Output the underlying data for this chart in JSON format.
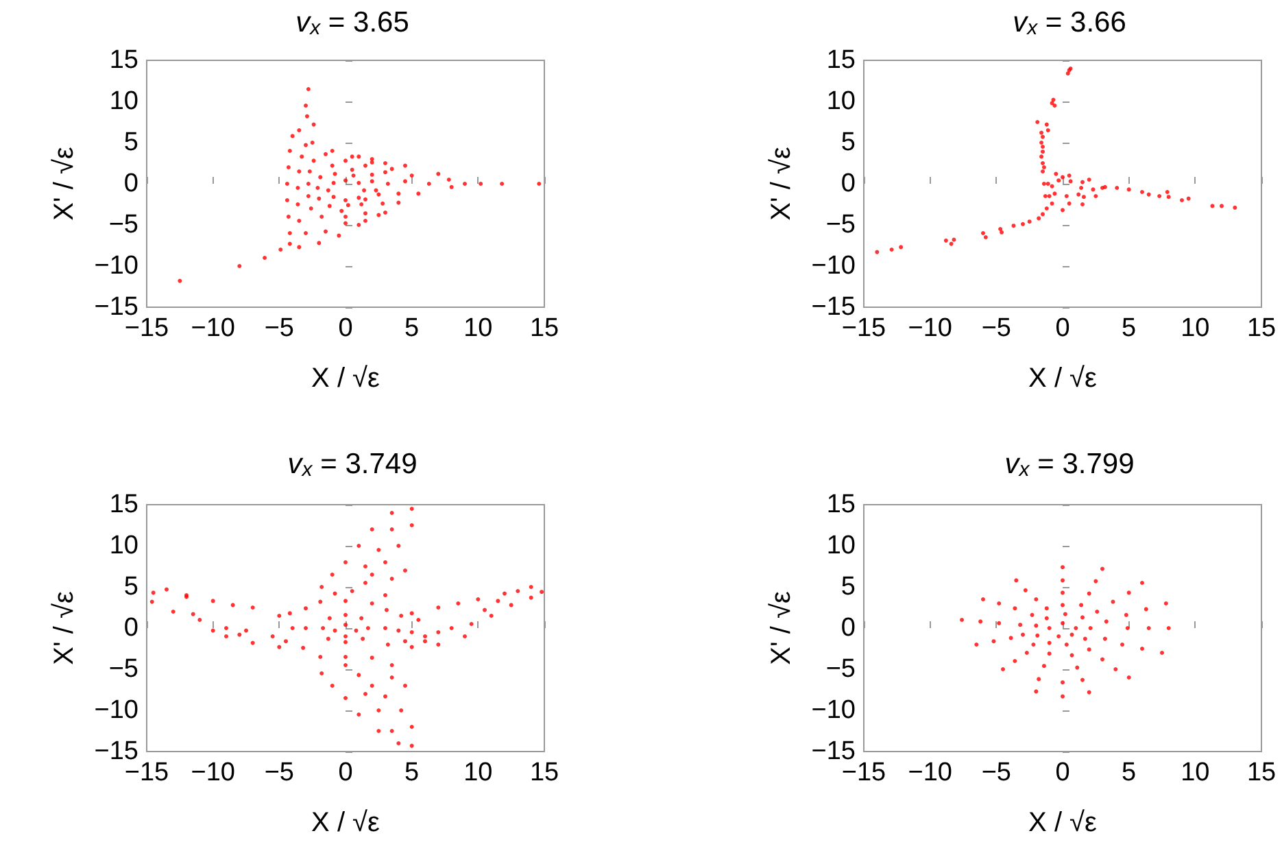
{
  "chart_data": [
    {
      "type": "scatter",
      "title": "v$_{x}$ = 3.65",
      "xlabel": "X / √ε",
      "ylabel": "X' / √ε",
      "color": "#ff0000",
      "marker": "circle",
      "xlim": [
        -15,
        15
      ],
      "ylim": [
        -15,
        15
      ],
      "xticks": [
        -15,
        -10,
        -5,
        0,
        5,
        10,
        15
      ],
      "yticks": [
        -15,
        -10,
        -5,
        0,
        5,
        10,
        15
      ],
      "x": [
        -12.5,
        -8,
        -6.1,
        -4.9,
        -4.2,
        -2.8,
        -3,
        -2.9,
        -2.4,
        7.8,
        9,
        10.2,
        11.8,
        14.6,
        7,
        8,
        -3.5,
        -2.5,
        -1,
        0.5,
        2,
        3.5,
        5,
        6.3,
        5.5,
        4,
        2.5,
        1,
        -0.5,
        -2,
        -3.5,
        -4.2,
        -4.3,
        -4.4,
        -4.4,
        -4.3,
        -4.2,
        -4,
        -3,
        -1.5,
        0,
        1.5,
        3,
        4.5,
        4,
        2.8,
        1.5,
        0,
        -1.5,
        -3,
        -3.5,
        -3.6,
        -3.6,
        -3.5,
        -3.3,
        -2.4,
        -1,
        0.5,
        2,
        3.2,
        2.5,
        1.2,
        -0.3,
        -1.8,
        -2.6,
        -2.8,
        -2.8,
        -2.7,
        -1.3,
        -0.9,
        0,
        1,
        1.4,
        1,
        0,
        -0.9,
        -1.9,
        -0.8,
        0.6,
        2,
        2.3,
        1.5,
        0.2,
        -1.2,
        -2,
        -2.1,
        1,
        2,
        3,
        4.5,
        0,
        1.5,
        3
      ],
      "values": [
        -11.8,
        -10,
        -9,
        -8,
        -7.3,
        11.5,
        9.5,
        8.2,
        7.2,
        0.5,
        0,
        0,
        0,
        0,
        1.2,
        -0.4,
        6.5,
        5,
        4,
        3.3,
        2.6,
        1.8,
        1,
        0,
        -1.2,
        -2.3,
        -3.8,
        -5,
        -6.3,
        -7.2,
        -7.7,
        -6,
        -4,
        -2,
        0,
        2,
        4,
        5.8,
        4.7,
        3.6,
        2.8,
        2.2,
        1.4,
        0.3,
        -1.2,
        -2.4,
        -3.6,
        -4.8,
        -5.8,
        -6,
        -4.5,
        -2.5,
        -0.5,
        1.5,
        3.3,
        2.8,
        2.2,
        1.7,
        1.1,
        0,
        -1.3,
        -2.5,
        -3.3,
        -4,
        -3,
        -1.5,
        0,
        1.5,
        -0.8,
        0.1,
        0.4,
        0.1,
        -0.8,
        -1.7,
        -2,
        -1.6,
        0.8,
        1.2,
        1,
        0.3,
        -0.8,
        -1.9,
        -2.6,
        -2.7,
        -1.8,
        -0.5,
        3.3,
        3,
        2.5,
        2.2,
        -4,
        -4.5,
        -3.5
      ]
    },
    {
      "type": "scatter",
      "title": "v$_{x}$ = 3.66",
      "xlabel": "X / √ε",
      "ylabel": "X' / √ε",
      "color": "#ff0000",
      "marker": "circle",
      "xlim": [
        -15,
        15
      ],
      "ylim": [
        -15,
        15
      ],
      "xticks": [
        -15,
        -10,
        -5,
        0,
        5,
        10,
        15
      ],
      "yticks": [
        -15,
        -10,
        -5,
        0,
        5,
        10,
        15
      ],
      "x": [
        0.5,
        0.6,
        0.4,
        -0.7,
        -0.6,
        -0.8,
        -1.9,
        -1.2,
        -1.1,
        -1.6,
        -1.5,
        -1.6,
        -1.5,
        -1.5,
        -1.6,
        -1.5,
        -1.4,
        -14,
        -12.9,
        -12.2,
        -8.8,
        -8.2,
        -8.4,
        -6,
        -5.8,
        -4.7,
        -4.6,
        -3.7,
        -3,
        -2.5,
        -1.8,
        -1.5,
        3,
        4.1,
        5,
        6,
        6.5,
        7.3,
        7.9,
        8,
        9,
        9.5,
        11.3,
        12,
        13,
        -1.5,
        -1.4,
        -1.3,
        -1.2,
        0,
        1.5,
        2.5,
        3.2,
        2,
        0.5,
        -0.5,
        -0.8,
        -0.3,
        0.6,
        1.4,
        1.2,
        0.3,
        -0.6,
        -1.1,
        -1,
        -0.8,
        0.5,
        1.6,
        2.3,
        1.5,
        0
      ],
      "values": [
        13.8,
        14,
        13.4,
        10.2,
        9.5,
        9.8,
        7.5,
        7.2,
        6.5,
        6.2,
        5.7,
        5,
        4.5,
        3.9,
        3.3,
        2.5,
        2,
        -8.3,
        -8,
        -7.7,
        -6.9,
        -6.8,
        -7.3,
        -6,
        -6.5,
        -5.5,
        -5.9,
        -5.1,
        -4.9,
        -4.6,
        -4.2,
        -3.7,
        -0.5,
        -0.5,
        -0.7,
        -1,
        -1.3,
        -1.5,
        -1,
        -1.6,
        -2,
        -1.8,
        -2.7,
        -2.7,
        -2.9,
        1.5,
        0,
        -1.5,
        -3,
        -3.2,
        -2.5,
        -1.5,
        -0.4,
        0.5,
        1,
        1.2,
        -0.3,
        0.4,
        0.3,
        -0.5,
        -1.3,
        -1.5,
        -1.2,
        0,
        -1.5,
        -2.4,
        -2.4,
        -1.6,
        -0.7,
        0.2,
        0.8
      ]
    },
    {
      "type": "scatter",
      "title": "v$_{x}$ = 3.749",
      "xlabel": "X / √ε",
      "ylabel": "X' / √ε",
      "color": "#ff0000",
      "marker": "circle",
      "xlim": [
        -15,
        15
      ],
      "ylim": [
        -15,
        15
      ],
      "xticks": [
        -15,
        -10,
        -5,
        0,
        5,
        10,
        15
      ],
      "yticks": [
        -15,
        -10,
        -5,
        0,
        5,
        10,
        15
      ],
      "x": [
        3.1,
        3,
        3.2,
        5,
        7,
        9,
        4.2,
        4,
        4.5,
        6,
        5,
        5,
        5.5,
        6,
        7,
        8.5,
        10,
        11.5,
        13,
        14,
        14.8,
        14,
        12.5,
        11,
        9.5,
        8,
        7,
        12,
        10.5,
        -3,
        -3,
        -3.2,
        -5,
        -7,
        -9,
        -4.2,
        -4,
        -4.5,
        -5,
        -5.5,
        -7,
        -8.5,
        -10,
        -12,
        -13.5,
        -14.5,
        -14.6,
        -13,
        -11,
        -9,
        -7.5,
        -11.5,
        -10,
        -8,
        -12,
        -1.9,
        0,
        2,
        3,
        -1.8,
        -1,
        0,
        1,
        2,
        3.5,
        5,
        5,
        4,
        3,
        2,
        1.5,
        0.5,
        -0.8,
        4.5,
        3.5,
        1.5,
        2.5,
        3.5,
        -1.9,
        0,
        2,
        3.5,
        -1.8,
        -1,
        0,
        1,
        2.5,
        4,
        5,
        5,
        4.2,
        3,
        2,
        1,
        0,
        4.5,
        3.5,
        1.5,
        2.5,
        3.5,
        -1.7,
        -1.2,
        0,
        1.2,
        1.7,
        1.3,
        0,
        -1.3,
        -0.8,
        0,
        0.8,
        0
      ],
      "values": [
        2.2,
        0,
        -2,
        -2.3,
        -2,
        -1,
        1.5,
        -0.3,
        -1.6,
        -1.6,
        1.8,
        -0.5,
        1,
        -1,
        2.5,
        3,
        3.5,
        3.3,
        4.5,
        5,
        4.4,
        3.7,
        2.8,
        1.5,
        0.5,
        0,
        -0.5,
        4.2,
        2.2,
        2.4,
        0,
        -2.4,
        -2.3,
        -1.8,
        -1,
        1.8,
        0,
        -1.6,
        1.5,
        -1,
        2.5,
        2.8,
        3.3,
        4,
        4.7,
        4.3,
        3.2,
        2,
        1,
        0,
        -0.3,
        1.7,
        -0.3,
        -0.8,
        3.8,
        3.2,
        3.3,
        3,
        4,
        5,
        6.5,
        8,
        10,
        12,
        14,
        14.5,
        12.5,
        10,
        8,
        6.5,
        5.5,
        4.5,
        4.2,
        7,
        6,
        7.5,
        9.5,
        12,
        -3.5,
        -3.5,
        -3.6,
        -4.5,
        -5.5,
        -7,
        -8.5,
        -10.5,
        -12.5,
        -14,
        -14.3,
        -12,
        -10,
        -8.3,
        -7,
        -5.7,
        -4.5,
        -7,
        -6,
        -8,
        -10,
        -12.5,
        0,
        1.2,
        1.6,
        1.2,
        0,
        -1.3,
        -1.7,
        -1.3,
        -0.3,
        0.4,
        -0.3,
        -1
      ]
    },
    {
      "type": "scatter",
      "title": "v$_{x}$ = 3.799",
      "xlabel": "X / √ε",
      "ylabel": "X' / √ε",
      "color": "#ff0000",
      "marker": "circle",
      "xlim": [
        -15,
        15
      ],
      "ylim": [
        -15,
        15
      ],
      "xticks": [
        -15,
        -10,
        -5,
        0,
        5,
        10,
        15
      ],
      "yticks": [
        -15,
        -10,
        -5,
        0,
        5,
        10,
        15
      ],
      "x": [
        -7.6,
        -6,
        -3.5,
        0,
        3,
        6,
        7.8,
        8,
        7.5,
        5,
        2,
        0,
        -2,
        -4.5,
        -6.5,
        -6.2,
        -4.8,
        -2.8,
        0,
        2.5,
        5,
        6.3,
        6.5,
        6,
        4,
        1.5,
        0,
        -1.8,
        -3.6,
        -5.2,
        -4.8,
        -3.6,
        -2,
        0,
        2,
        3.8,
        4.8,
        4.9,
        4.5,
        3,
        1.1,
        -1.4,
        -2.7,
        -3.9,
        -3.2,
        -2.3,
        -1.2,
        0,
        1.4,
        2.6,
        3.3,
        3.2,
        2,
        0.7,
        -1,
        -2.2,
        -3,
        -2,
        -1.2,
        0.2,
        1.5,
        2.1,
        1.7,
        0.3,
        -1,
        -1.9,
        -1,
        0,
        1,
        0.7,
        -0.3
      ],
      "values": [
        1,
        3.5,
        5.8,
        7.4,
        7.2,
        5.5,
        3,
        0,
        -3,
        -6,
        -7.8,
        -8.3,
        -7.7,
        -5,
        -2,
        0.8,
        3,
        4.6,
        5.8,
        5.7,
        4.3,
        2.3,
        0,
        -2.5,
        -5,
        -6.3,
        -6.6,
        -6.2,
        -4,
        -1.6,
        0.6,
        2.4,
        3.5,
        4.3,
        4.2,
        3.2,
        1.6,
        0,
        -2,
        -3.8,
        -4.8,
        -4.6,
        -3,
        -1.2,
        0.4,
        1.6,
        2.4,
        2.8,
        2.8,
        2,
        0.8,
        -1.3,
        -2.6,
        -3.3,
        -3.1,
        -2,
        -0.8,
        0.3,
        1.2,
        1.7,
        1.3,
        0,
        -1.3,
        -2,
        -1.8,
        -0.9,
        0,
        0.6,
        0,
        -0.8,
        -1
      ]
    }
  ]
}
